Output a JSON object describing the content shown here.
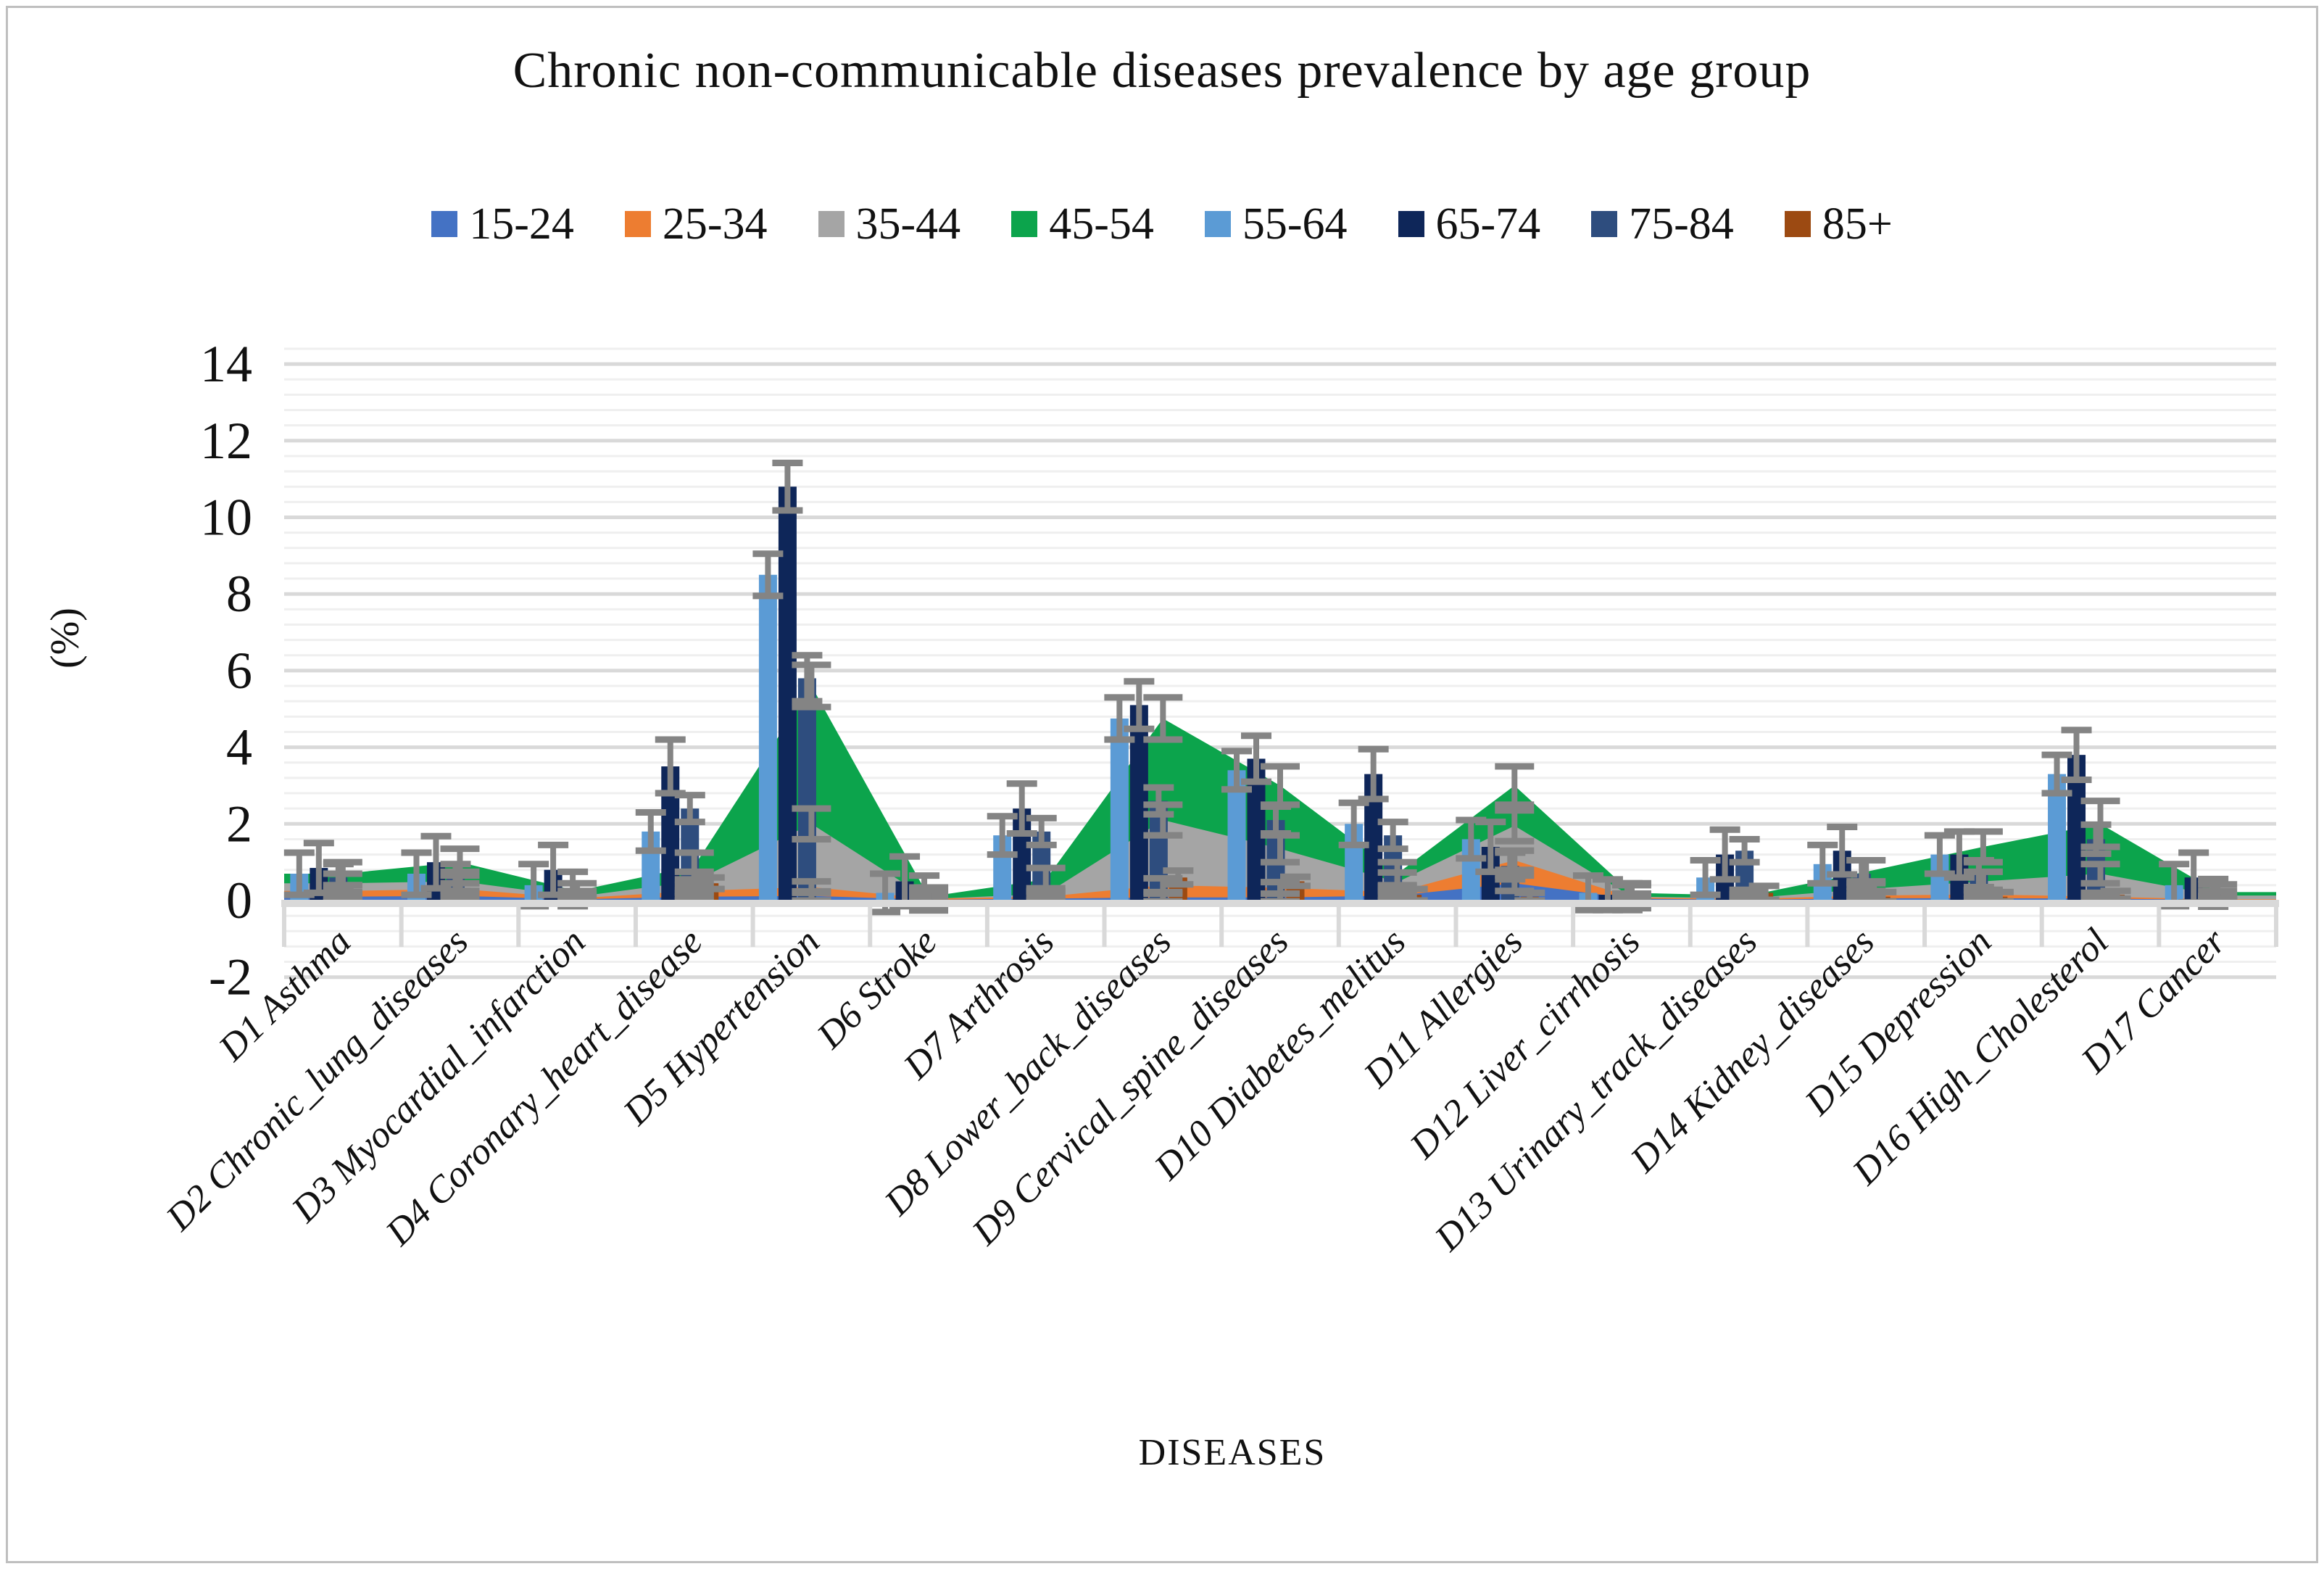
{
  "chart_data": {
    "type": "bar",
    "subtype": "combo-area-and-bar-with-error-bars",
    "title": "Chronic non-communicable diseases prevalence by age group",
    "xlabel": "DISEASES",
    "ylabel": "(%)",
    "legend_position": "top",
    "grid": "horizontal, minor every 0.4, major every 2",
    "y_axis": {
      "min": -2,
      "max": 14,
      "ticks": [
        14,
        12,
        10,
        8,
        6,
        4,
        2,
        0,
        -2
      ]
    },
    "categories": [
      "D1 Asthma",
      "D2 Chronic_lung_diseases",
      "D3 Myocardial_infarction",
      "D4 Coronary_heart_disease",
      "D5 Hypertension",
      "D6 Stroke",
      "D7 Arthrosis",
      "D8 Lower_back_diseases",
      "D9 Cervical_spine_diseases",
      "D10 Diabetes_melitus",
      "D11 Allergies",
      "D12 Liver_cirrhosis",
      "D13 Urinary_track_diseases",
      "D14 Kidney_diseases",
      "D15 Depression",
      "D16 High_Cholesterol",
      "D17 Cancer"
    ],
    "series": [
      {
        "name": "15-24",
        "style": "area",
        "color": "#4472C4",
        "values": [
          0.1,
          0.12,
          0.03,
          0.1,
          0.12,
          0.02,
          0.05,
          0.08,
          0.08,
          0.13,
          0.45,
          0.05,
          0.02,
          0.06,
          0.06,
          0.05,
          0.02
        ],
        "errors": [
          0.12,
          0.12,
          0.1,
          0.1,
          0.12,
          0.1,
          0.1,
          0.1,
          0.1,
          0.12,
          0.2,
          0.1,
          0.08,
          0.1,
          0.1,
          0.1,
          0.08
        ]
      },
      {
        "name": "25-34",
        "style": "area",
        "color": "#ED7D31",
        "values": [
          0.25,
          0.3,
          0.06,
          0.25,
          0.35,
          0.05,
          0.1,
          0.4,
          0.33,
          0.22,
          1.05,
          0.08,
          0.04,
          0.13,
          0.16,
          0.1,
          0.03
        ],
        "errors": [
          0.15,
          0.15,
          0.1,
          0.15,
          0.15,
          0.1,
          0.12,
          0.18,
          0.15,
          0.15,
          0.25,
          0.1,
          0.08,
          0.12,
          0.12,
          0.1,
          0.08
        ]
      },
      {
        "name": "35-44",
        "style": "area",
        "color": "#A5A5A5",
        "values": [
          0.45,
          0.5,
          0.1,
          0.5,
          2.0,
          0.04,
          0.17,
          2.1,
          1.35,
          0.48,
          1.95,
          0.1,
          0.06,
          0.3,
          0.5,
          0.7,
          0.13
        ],
        "errors": [
          0.25,
          0.25,
          0.15,
          0.25,
          0.4,
          0.3,
          0.15,
          0.4,
          0.35,
          0.25,
          0.4,
          0.3,
          0.1,
          0.2,
          0.25,
          0.25,
          0.12
        ]
      },
      {
        "name": "45-54",
        "style": "area",
        "color": "#0CA44C",
        "values": [
          0.7,
          1.0,
          0.25,
          0.9,
          5.6,
          0.1,
          0.55,
          4.75,
          3.0,
          0.7,
          3.0,
          0.2,
          0.13,
          0.75,
          1.4,
          2.0,
          0.22
        ],
        "errors": [
          0.3,
          0.35,
          0.2,
          0.35,
          0.55,
          0.2,
          0.3,
          0.55,
          0.5,
          0.3,
          0.5,
          0.25,
          0.15,
          0.3,
          0.4,
          0.6,
          0.2
        ]
      },
      {
        "name": "55-64",
        "style": "bar",
        "color": "#5B9BD5",
        "values": [
          0.7,
          0.7,
          0.4,
          1.8,
          8.5,
          0.2,
          1.7,
          4.75,
          3.4,
          2.0,
          1.6,
          0.2,
          0.6,
          0.95,
          1.2,
          3.3,
          0.4
        ],
        "errors": [
          0.55,
          0.55,
          0.55,
          0.5,
          0.55,
          0.5,
          0.5,
          0.55,
          0.5,
          0.55,
          0.5,
          0.45,
          0.45,
          0.5,
          0.5,
          0.5,
          0.55
        ]
      },
      {
        "name": "65-74",
        "style": "bar",
        "color": "#0E2659",
        "values": [
          0.85,
          1.0,
          0.8,
          3.5,
          10.8,
          0.5,
          2.4,
          5.1,
          3.7,
          3.3,
          1.4,
          0.15,
          1.2,
          1.3,
          1.2,
          3.8,
          0.6
        ],
        "errors": [
          0.65,
          0.68,
          0.65,
          0.7,
          0.62,
          0.65,
          0.65,
          0.62,
          0.6,
          0.65,
          0.65,
          0.4,
          0.65,
          0.62,
          0.6,
          0.65,
          0.65
        ]
      },
      {
        "name": "75-84",
        "style": "bar",
        "color": "#2E4D7E",
        "values": [
          0.6,
          0.6,
          0.3,
          2.4,
          5.8,
          0.3,
          1.8,
          2.6,
          2.1,
          1.7,
          0.9,
          0.1,
          1.3,
          0.7,
          0.7,
          1.6,
          0.2
        ],
        "errors": [
          0.35,
          0.35,
          0.45,
          0.35,
          0.6,
          0.35,
          0.35,
          0.35,
          0.35,
          0.35,
          0.35,
          0.35,
          0.3,
          0.35,
          0.35,
          0.38,
          0.36
        ]
      },
      {
        "name": "85+",
        "style": "bar",
        "color": "#9C4A12",
        "values": [
          0,
          0,
          0,
          0.45,
          0,
          0,
          0,
          0.6,
          0.5,
          0.15,
          0.1,
          0,
          0.2,
          0.1,
          0.1,
          0.15,
          0
        ],
        "errors": [
          0,
          0,
          0,
          0.15,
          0,
          0,
          0,
          0.18,
          0.12,
          0.15,
          0.1,
          0,
          0.18,
          0.12,
          0.12,
          0.1,
          0
        ]
      }
    ],
    "error_bar_color": "#848484",
    "gridline_major_color": "#D9D9D9",
    "gridline_minor_color": "#EFEFEF",
    "axis_line_color": "#D9D9D9"
  }
}
